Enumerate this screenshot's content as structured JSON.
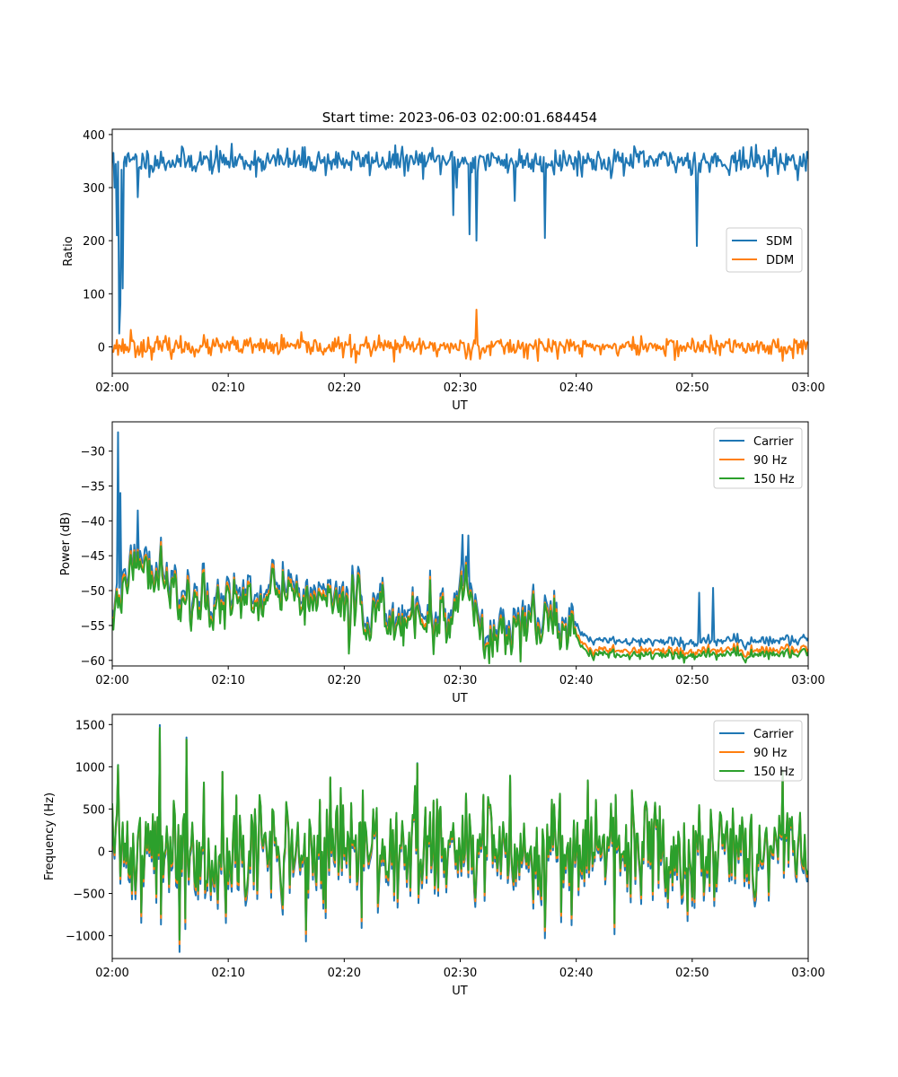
{
  "figure": {
    "title": "Start time: 2023-06-03 02:00:01.684454"
  },
  "colors": {
    "blue": "#1f77b4",
    "orange": "#ff7f0e",
    "green": "#2ca02c"
  },
  "chart_data": [
    {
      "type": "line",
      "title": "Start time: 2023-06-03 02:00:01.684454",
      "xlabel": "UT",
      "ylabel": "Ratio",
      "xlim": [
        "02:00",
        "03:00"
      ],
      "ylim": [
        -50,
        410
      ],
      "xticks": [
        "02:00",
        "02:10",
        "02:20",
        "02:30",
        "02:40",
        "02:50",
        "03:00"
      ],
      "yticks": [
        0,
        100,
        200,
        300,
        400
      ],
      "legend": "center-right",
      "grid": false,
      "series": [
        {
          "name": "SDM",
          "color": "#1f77b4",
          "mean": 350,
          "noise": 12,
          "seed": 11,
          "anomalies": [
            {
              "t": "02:00:10",
              "v": 300
            },
            {
              "t": "02:00:25",
              "v": 210
            },
            {
              "t": "02:00:35",
              "v": 25
            },
            {
              "t": "02:00:45",
              "v": 80
            },
            {
              "t": "02:00:55",
              "v": 110
            },
            {
              "t": "02:01:10",
              "v": 340
            },
            {
              "t": "02:02:10",
              "v": 282
            },
            {
              "t": "02:29:24",
              "v": 248
            },
            {
              "t": "02:29:40",
              "v": 300
            },
            {
              "t": "02:30:50",
              "v": 212
            },
            {
              "t": "02:31:25",
              "v": 200
            },
            {
              "t": "02:34:40",
              "v": 275
            },
            {
              "t": "02:37:20",
              "v": 205
            },
            {
              "t": "02:50:25",
              "v": 190
            }
          ]
        },
        {
          "name": "DDM",
          "color": "#ff7f0e",
          "mean": 0,
          "noise": 9,
          "seed": 23,
          "anomalies": [
            {
              "t": "02:01:35",
              "v": 32
            },
            {
              "t": "02:31:25",
              "v": 70
            },
            {
              "t": "02:21:00",
              "v": -30
            },
            {
              "t": "02:24:20",
              "v": -28
            }
          ]
        }
      ]
    },
    {
      "type": "line",
      "title": "",
      "xlabel": "UT",
      "ylabel": "Power (dB)",
      "xlim": [
        "02:00",
        "03:00"
      ],
      "ylim": [
        -60.8,
        -25.8
      ],
      "xticks": [
        "02:00",
        "02:10",
        "02:20",
        "02:30",
        "02:40",
        "02:50",
        "03:00"
      ],
      "yticks": [
        -30,
        -35,
        -40,
        -45,
        -50,
        -55,
        -60
      ],
      "legend": "top-right",
      "grid": false,
      "trend": [
        {
          "t": "02:00:00",
          "v": -53
        },
        {
          "t": "02:02:00",
          "v": -45
        },
        {
          "t": "02:04:00",
          "v": -47
        },
        {
          "t": "02:06:00",
          "v": -52
        },
        {
          "t": "02:10:00",
          "v": -51
        },
        {
          "t": "02:15:00",
          "v": -50
        },
        {
          "t": "02:20:00",
          "v": -52
        },
        {
          "t": "02:25:00",
          "v": -54
        },
        {
          "t": "02:29:00",
          "v": -55
        },
        {
          "t": "02:30:30",
          "v": -49
        },
        {
          "t": "02:32:00",
          "v": -56
        },
        {
          "t": "02:34:00",
          "v": -55
        },
        {
          "t": "02:36:00",
          "v": -53
        },
        {
          "t": "02:40:00",
          "v": -56
        },
        {
          "t": "02:41:00",
          "v": -58
        },
        {
          "t": "02:50:00",
          "v": -58.2
        },
        {
          "t": "03:00:00",
          "v": -58
        }
      ],
      "series": [
        {
          "name": "Carrier",
          "color": "#1f77b4",
          "offset": 0.6,
          "anomalies": [
            {
              "t": "02:00:30",
              "v": -27.3
            },
            {
              "t": "02:00:45",
              "v": -36
            },
            {
              "t": "02:01:00",
              "v": -47
            },
            {
              "t": "02:02:15",
              "v": -38.5
            },
            {
              "t": "02:30:15",
              "v": -42
            },
            {
              "t": "02:30:45",
              "v": -42.1
            },
            {
              "t": "02:50:35",
              "v": -50.3
            },
            {
              "t": "02:51:50",
              "v": -49.6
            }
          ]
        },
        {
          "name": "90 Hz",
          "color": "#ff7f0e",
          "offset": -0.3,
          "anomalies": []
        },
        {
          "name": "150 Hz",
          "color": "#2ca02c",
          "offset": -0.7,
          "anomalies": []
        }
      ]
    },
    {
      "type": "line",
      "title": "",
      "xlabel": "UT",
      "ylabel": "Frequency (Hz)",
      "xlim": [
        "02:00",
        "03:00"
      ],
      "ylim": [
        -1270,
        1620
      ],
      "xticks": [
        "02:00",
        "02:10",
        "02:20",
        "02:30",
        "02:40",
        "02:50",
        "03:00"
      ],
      "yticks": [
        1500,
        1000,
        500,
        0,
        -500,
        -1000
      ],
      "legend": "top-right",
      "grid": false,
      "series": [
        {
          "name": "Carrier",
          "color": "#1f77b4",
          "offset": -70,
          "scale": 1.05
        },
        {
          "name": "90 Hz",
          "color": "#ff7f0e",
          "offset": -30,
          "scale": 1.0
        },
        {
          "name": "150 Hz",
          "color": "#2ca02c",
          "offset": 0,
          "scale": 0.98
        }
      ],
      "noise": 330,
      "seed": 41,
      "anomalies": [
        {
          "t": "02:00:30",
          "v": 1040
        },
        {
          "t": "02:04:05",
          "v": 1490
        },
        {
          "t": "02:05:50",
          "v": -1070
        },
        {
          "t": "02:06:25",
          "v": 1350
        },
        {
          "t": "02:04:10",
          "v": -760
        },
        {
          "t": "02:09:30",
          "v": 960
        },
        {
          "t": "02:16:40",
          "v": -950
        },
        {
          "t": "02:26:20",
          "v": 1060
        },
        {
          "t": "02:43:20",
          "v": -870
        },
        {
          "t": "02:57:50",
          "v": 980
        }
      ]
    }
  ]
}
